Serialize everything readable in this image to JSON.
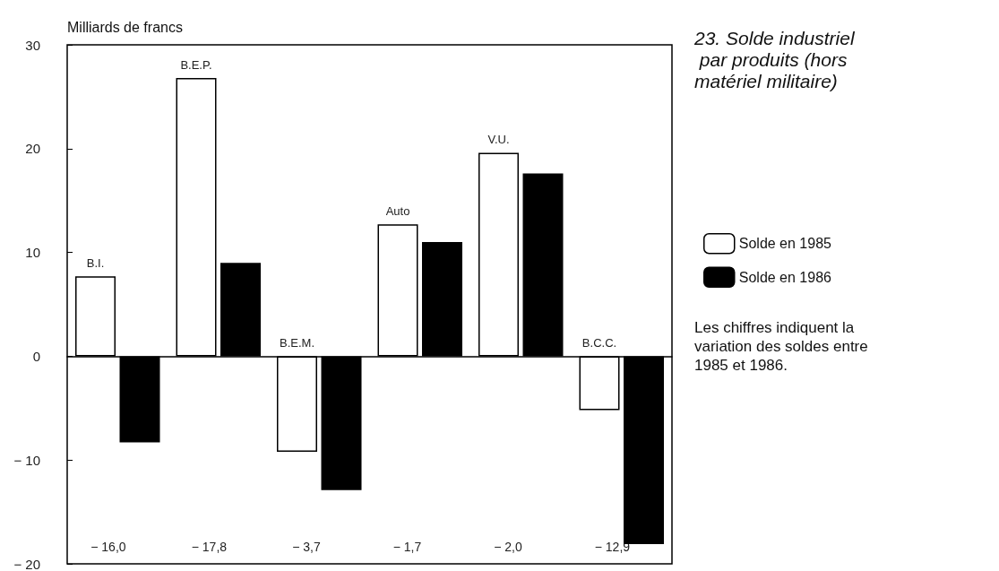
{
  "chart_data": {
    "type": "bar",
    "title": "23. Solde industriel par produits (hors matériel militaire)",
    "ylabel": "Milliards de francs",
    "categories": [
      "B.I.",
      "B.E.P.",
      "B.E.M.",
      "Auto",
      "V.U.",
      "B.C.C."
    ],
    "series": [
      {
        "name": "Solde en 1985",
        "color": "#ffffff",
        "values": [
          7.7,
          26.8,
          -9.2,
          12.7,
          19.6,
          -5.2
        ]
      },
      {
        "name": "Solde en 1986",
        "color": "#000000",
        "values": [
          -8.3,
          9.0,
          -12.9,
          11.0,
          17.6,
          -18.1
        ]
      }
    ],
    "ylim": [
      -20,
      30
    ],
    "yticks": [
      {
        "value": -20,
        "label": "− 20"
      },
      {
        "value": -10,
        "label": "− 10"
      },
      0,
      10,
      20,
      30
    ],
    "grid": false,
    "legend": "right",
    "annotations": [
      "− 16,0",
      "− 17,8",
      "− 3,7",
      "− 1,7",
      "− 2,0",
      "− 12,9",
      "Les chiffres indiquent la variation des soldes entre 1985 et 1986."
    ]
  }
}
